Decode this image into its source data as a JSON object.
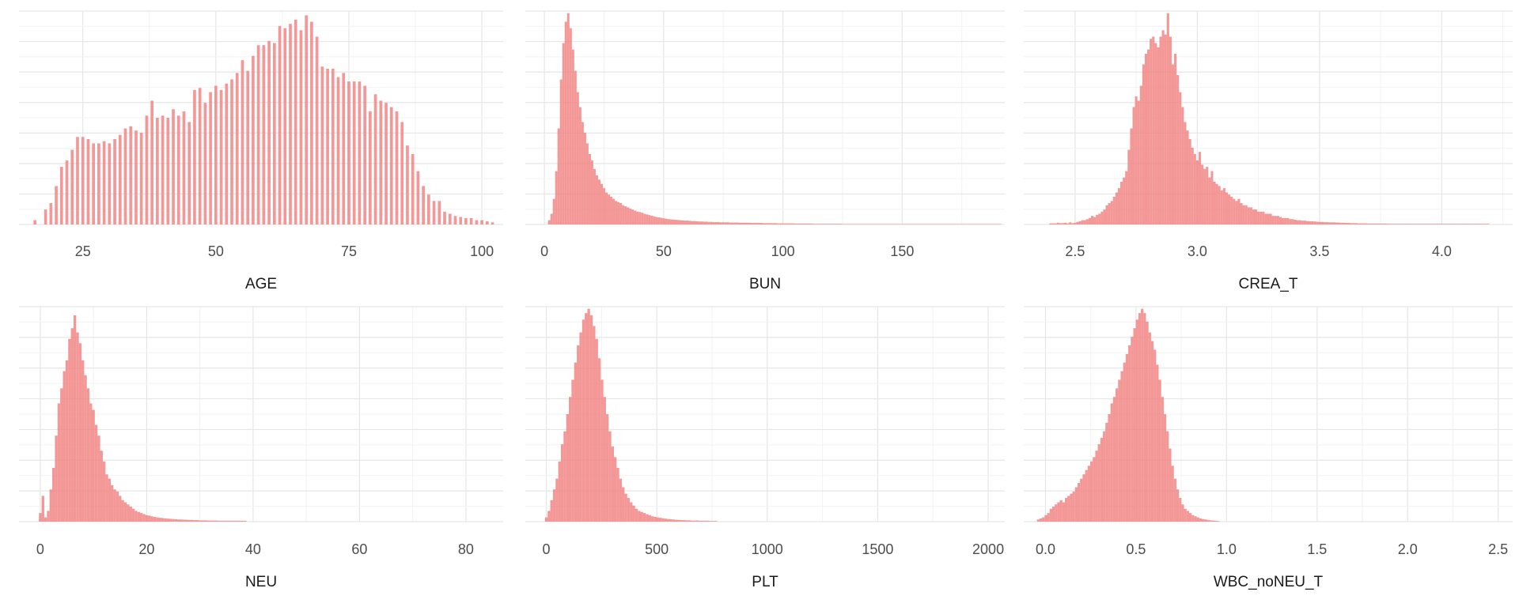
{
  "style": {
    "bar_color": "#f08080",
    "bar_opacity": 0.82,
    "grid_major": "#e6e6e6",
    "grid_minor": "#f2f2f2"
  },
  "chart_data": [
    {
      "type": "bar",
      "xlabel": "AGE",
      "xlim": [
        13,
        104
      ],
      "ylim": [
        0,
        1
      ],
      "x_ticks": [
        25,
        50,
        75,
        100
      ],
      "x_tick_labels": [
        "25",
        "50",
        "75",
        "100"
      ],
      "bins": {
        "x": [
          16,
          18,
          19,
          20,
          21,
          22,
          23,
          24,
          25,
          26,
          27,
          28,
          29,
          30,
          31,
          32,
          33,
          34,
          35,
          36,
          37,
          38,
          39,
          40,
          41,
          42,
          43,
          44,
          45,
          46,
          47,
          48,
          49,
          50,
          51,
          52,
          53,
          54,
          55,
          56,
          57,
          58,
          59,
          60,
          61,
          62,
          63,
          64,
          65,
          66,
          67,
          68,
          69,
          70,
          71,
          72,
          73,
          74,
          75,
          76,
          77,
          78,
          79,
          80,
          81,
          82,
          83,
          84,
          85,
          86,
          87,
          88,
          89,
          90,
          91,
          92,
          93,
          94,
          95,
          96,
          97,
          98,
          99,
          100,
          101,
          102
        ],
        "values": [
          0.02,
          0.07,
          0.1,
          0.18,
          0.27,
          0.3,
          0.35,
          0.41,
          0.41,
          0.4,
          0.38,
          0.38,
          0.39,
          0.38,
          0.4,
          0.42,
          0.45,
          0.46,
          0.44,
          0.43,
          0.51,
          0.58,
          0.5,
          0.51,
          0.5,
          0.54,
          0.51,
          0.53,
          0.48,
          0.63,
          0.64,
          0.57,
          0.62,
          0.65,
          0.63,
          0.66,
          0.68,
          0.71,
          0.77,
          0.72,
          0.79,
          0.84,
          0.84,
          0.86,
          0.85,
          0.93,
          0.92,
          0.94,
          0.96,
          0.91,
          0.98,
          0.95,
          0.88,
          0.74,
          0.73,
          0.73,
          0.69,
          0.71,
          0.67,
          0.67,
          0.67,
          0.65,
          0.53,
          0.61,
          0.58,
          0.57,
          0.55,
          0.53,
          0.48,
          0.37,
          0.33,
          0.25,
          0.18,
          0.14,
          0.11,
          0.11,
          0.06,
          0.05,
          0.04,
          0.035,
          0.03,
          0.03,
          0.02,
          0.02,
          0.015,
          0.01
        ],
        "bar_width": 0.55
      }
    },
    {
      "type": "bar",
      "xlabel": "BUN",
      "xlim": [
        -8,
        193
      ],
      "ylim": [
        0,
        1
      ],
      "x_ticks": [
        0,
        50,
        100,
        150
      ],
      "x_tick_labels": [
        "0",
        "50",
        "100",
        "150"
      ],
      "bins": {
        "x_start": 2,
        "step": 1,
        "values": [
          0.02,
          0.05,
          0.12,
          0.25,
          0.45,
          0.68,
          0.85,
          0.95,
          0.99,
          0.92,
          0.82,
          0.72,
          0.62,
          0.55,
          0.48,
          0.43,
          0.38,
          0.33,
          0.3,
          0.26,
          0.23,
          0.21,
          0.19,
          0.17,
          0.15,
          0.14,
          0.13,
          0.12,
          0.11,
          0.105,
          0.1,
          0.09,
          0.085,
          0.08,
          0.075,
          0.07,
          0.065,
          0.06,
          0.058,
          0.055,
          0.05,
          0.047,
          0.044,
          0.041,
          0.038,
          0.035,
          0.033,
          0.031,
          0.029,
          0.027,
          0.025,
          0.024,
          0.023,
          0.022,
          0.021,
          0.02,
          0.019,
          0.018,
          0.018,
          0.017,
          0.016,
          0.016,
          0.015,
          0.014,
          0.014,
          0.013,
          0.013,
          0.012,
          0.012,
          0.011,
          0.011,
          0.011,
          0.01,
          0.01,
          0.01,
          0.01,
          0.009,
          0.009,
          0.009,
          0.009,
          0.008,
          0.008,
          0.008,
          0.008,
          0.008,
          0.007,
          0.007,
          0.007,
          0.007,
          0.007,
          0.006,
          0.006,
          0.006,
          0.006,
          0.006,
          0.006,
          0.005,
          0.005,
          0.005,
          0.005,
          0.005,
          0.005,
          0.005,
          0.004,
          0.004,
          0.004,
          0.004,
          0.004,
          0.004,
          0.004,
          0.004,
          0.003,
          0.003,
          0.003,
          0.003,
          0.003,
          0.003,
          0.003,
          0.003,
          0.003,
          0.003,
          0.003,
          0.003,
          0.002,
          0.002,
          0.002,
          0.002,
          0.002,
          0.002,
          0.002,
          0.002,
          0.002,
          0.002,
          0.002,
          0.002,
          0.002,
          0.002,
          0.002,
          0.002,
          0.002,
          0.002,
          0.002,
          0.002,
          0.002,
          0.002,
          0.002,
          0.002,
          0.002,
          0.002,
          0.002,
          0.002,
          0.002,
          0.002,
          0.002,
          0.002,
          0.002,
          0.002,
          0.002,
          0.002,
          0.002,
          0.002,
          0.002,
          0.002,
          0.002,
          0.002,
          0.002,
          0.002,
          0.002,
          0.002,
          0.002,
          0.002,
          0.002,
          0.002,
          0.002,
          0.002,
          0.002,
          0.002,
          0.002,
          0.002,
          0.002,
          0.002,
          0.002,
          0.002,
          0.002,
          0.002,
          0.002,
          0.002,
          0.002,
          0.002,
          0.002
        ],
        "bar_width": 1
      }
    },
    {
      "type": "bar",
      "xlabel": "CREA_T",
      "xlim": [
        2.29,
        4.29
      ],
      "ylim": [
        0,
        1
      ],
      "x_ticks": [
        2.5,
        3.0,
        3.5,
        4.0
      ],
      "x_tick_labels": [
        "2.5",
        "3.0",
        "3.5",
        "4.0"
      ],
      "bins": {
        "x_start": 2.4,
        "step": 0.01,
        "values": [
          0.005,
          0.005,
          0.005,
          0.008,
          0.006,
          0.006,
          0.008,
          0.005,
          0.01,
          0.006,
          0.008,
          0.012,
          0.015,
          0.02,
          0.02,
          0.025,
          0.03,
          0.04,
          0.035,
          0.045,
          0.05,
          0.06,
          0.07,
          0.09,
          0.1,
          0.11,
          0.13,
          0.15,
          0.17,
          0.2,
          0.22,
          0.25,
          0.35,
          0.45,
          0.55,
          0.6,
          0.58,
          0.65,
          0.75,
          0.8,
          0.82,
          0.87,
          0.88,
          0.85,
          0.83,
          0.88,
          0.91,
          0.89,
          0.99,
          0.88,
          0.75,
          0.8,
          0.7,
          0.62,
          0.55,
          0.48,
          0.44,
          0.4,
          0.36,
          0.33,
          0.3,
          0.34,
          0.28,
          0.26,
          0.27,
          0.22,
          0.25,
          0.2,
          0.19,
          0.18,
          0.16,
          0.17,
          0.15,
          0.14,
          0.13,
          0.12,
          0.11,
          0.12,
          0.1,
          0.09,
          0.09,
          0.08,
          0.08,
          0.07,
          0.07,
          0.06,
          0.06,
          0.06,
          0.05,
          0.05,
          0.05,
          0.04,
          0.04,
          0.04,
          0.035,
          0.03,
          0.03,
          0.03,
          0.025,
          0.025,
          0.022,
          0.02,
          0.02,
          0.018,
          0.018,
          0.016,
          0.015,
          0.015,
          0.014,
          0.013,
          0.012,
          0.012,
          0.011,
          0.011,
          0.01,
          0.01,
          0.01,
          0.009,
          0.009,
          0.008,
          0.008,
          0.007,
          0.007,
          0.006,
          0.006,
          0.006,
          0.005,
          0.005,
          0.005,
          0.005,
          0.004,
          0.004,
          0.004,
          0.004,
          0.004,
          0.004,
          0.004,
          0.004,
          0.003,
          0.003,
          0.003,
          0.003,
          0.003,
          0.003,
          0.003,
          0.003,
          0.003,
          0.003,
          0.003,
          0.003,
          0.003,
          0.003,
          0.003,
          0.003,
          0.003,
          0.003,
          0.003,
          0.003,
          0.003,
          0.003,
          0.003,
          0.003,
          0.003,
          0.003,
          0.003,
          0.003,
          0.003,
          0.003,
          0.003,
          0.003,
          0.003,
          0.003,
          0.003,
          0.003,
          0.003,
          0.003,
          0.003,
          0.003,
          0.003,
          0.003
        ],
        "bar_width": 0.01
      }
    },
    {
      "type": "bar",
      "xlabel": "NEU",
      "xlim": [
        -4,
        87
      ],
      "ylim": [
        0,
        1
      ],
      "x_ticks": [
        0,
        20,
        40,
        60,
        80
      ],
      "x_tick_labels": [
        "0",
        "20",
        "40",
        "60",
        "80"
      ],
      "bins": {
        "x_start": 0,
        "step": 0.5,
        "values": [
          0.04,
          0.12,
          0.02,
          0.05,
          0.15,
          0.25,
          0.4,
          0.55,
          0.62,
          0.7,
          0.75,
          0.85,
          0.9,
          0.96,
          0.88,
          0.83,
          0.75,
          0.68,
          0.62,
          0.55,
          0.52,
          0.45,
          0.4,
          0.33,
          0.28,
          0.22,
          0.2,
          0.17,
          0.15,
          0.14,
          0.12,
          0.1,
          0.09,
          0.08,
          0.07,
          0.06,
          0.05,
          0.045,
          0.04,
          0.035,
          0.03,
          0.028,
          0.025,
          0.022,
          0.02,
          0.018,
          0.017,
          0.015,
          0.014,
          0.013,
          0.012,
          0.011,
          0.01,
          0.01,
          0.009,
          0.009,
          0.008,
          0.008,
          0.007,
          0.007,
          0.006,
          0.006,
          0.006,
          0.005,
          0.005,
          0.005,
          0.005,
          0.004,
          0.004,
          0.004,
          0.004,
          0.004,
          0.004,
          0.004,
          0.004,
          0.004,
          0.004,
          0.004
        ],
        "bar_width": 0.5
      }
    },
    {
      "type": "bar",
      "xlabel": "PLT",
      "xlim": [
        -95,
        2075
      ],
      "ylim": [
        0,
        1
      ],
      "x_ticks": [
        0,
        500,
        1000,
        1500,
        2000
      ],
      "x_tick_labels": [
        "0",
        "500",
        "1000",
        "1500",
        "2000"
      ],
      "bins": {
        "x_start": 0,
        "step": 12,
        "values": [
          0.02,
          0.05,
          0.1,
          0.15,
          0.2,
          0.28,
          0.36,
          0.42,
          0.5,
          0.58,
          0.66,
          0.74,
          0.82,
          0.88,
          0.94,
          0.97,
          0.99,
          0.96,
          0.91,
          0.85,
          0.76,
          0.66,
          0.58,
          0.5,
          0.42,
          0.35,
          0.3,
          0.25,
          0.2,
          0.16,
          0.13,
          0.11,
          0.09,
          0.075,
          0.06,
          0.05,
          0.045,
          0.04,
          0.035,
          0.03,
          0.025,
          0.022,
          0.02,
          0.018,
          0.016,
          0.014,
          0.012,
          0.011,
          0.01,
          0.009,
          0.008,
          0.007,
          0.007,
          0.006,
          0.006,
          0.005,
          0.005,
          0.005,
          0.004,
          0.004,
          0.004,
          0.004,
          0.003,
          0.003,
          0.003
        ],
        "bar_width": 12
      }
    },
    {
      "type": "bar",
      "xlabel": "WBC_noNEU_T",
      "xlim": [
        -0.12,
        2.58
      ],
      "ylim": [
        0,
        1
      ],
      "x_ticks": [
        0.0,
        0.5,
        1.0,
        1.5,
        2.0,
        2.5
      ],
      "x_tick_labels": [
        "0.0",
        "0.5",
        "1.0",
        "1.5",
        "2.0",
        "2.5"
      ],
      "bins": {
        "x_start": -0.04,
        "step": 0.014,
        "values": [
          0.01,
          0.015,
          0.02,
          0.03,
          0.04,
          0.06,
          0.07,
          0.08,
          0.09,
          0.1,
          0.09,
          0.11,
          0.12,
          0.13,
          0.14,
          0.16,
          0.18,
          0.2,
          0.22,
          0.24,
          0.26,
          0.28,
          0.3,
          0.33,
          0.36,
          0.39,
          0.42,
          0.46,
          0.5,
          0.55,
          0.58,
          0.62,
          0.66,
          0.7,
          0.74,
          0.78,
          0.82,
          0.86,
          0.9,
          0.94,
          0.97,
          0.99,
          0.97,
          0.93,
          0.88,
          0.84,
          0.8,
          0.73,
          0.66,
          0.58,
          0.5,
          0.42,
          0.34,
          0.26,
          0.2,
          0.15,
          0.11,
          0.08,
          0.06,
          0.05,
          0.04,
          0.03,
          0.025,
          0.02,
          0.015,
          0.012,
          0.01,
          0.008,
          0.006,
          0.005,
          0.004,
          0.003
        ],
        "bar_width": 0.014
      }
    }
  ]
}
